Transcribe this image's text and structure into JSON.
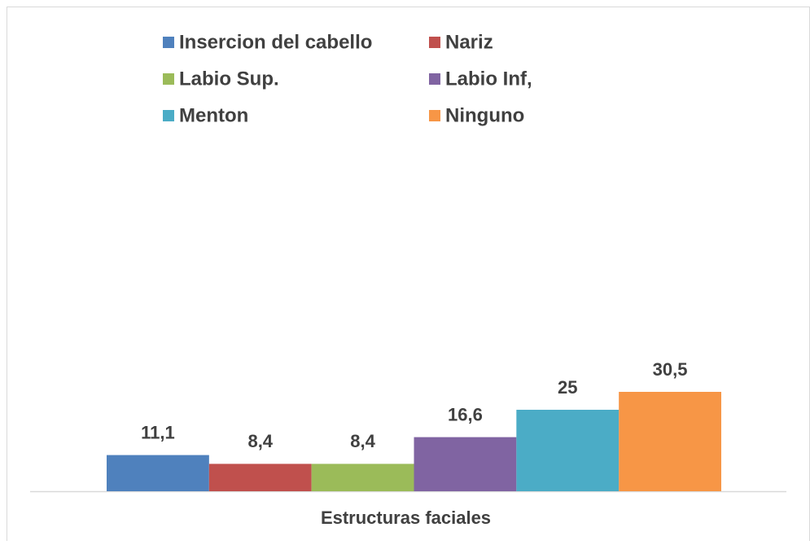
{
  "chart_data": {
    "type": "bar",
    "categories": [
      "Estructuras faciales"
    ],
    "series": [
      {
        "name": "Insercion del cabello",
        "color": "#4f81bd",
        "values": [
          11.1
        ],
        "value_labels": [
          "11,1"
        ]
      },
      {
        "name": "Nariz",
        "color": "#c0504d",
        "values": [
          8.4
        ],
        "value_labels": [
          "8,4"
        ]
      },
      {
        "name": "Labio Sup.",
        "color": "#9bbb59",
        "values": [
          8.4
        ],
        "value_labels": [
          "8,4"
        ]
      },
      {
        "name": "Labio Inf,",
        "color": "#8064a2",
        "values": [
          16.6
        ],
        "value_labels": [
          "16,6"
        ]
      },
      {
        "name": "Menton",
        "color": "#4bacc6",
        "values": [
          25
        ],
        "value_labels": [
          "25"
        ]
      },
      {
        "name": "Ninguno",
        "color": "#f79646",
        "values": [
          30.5
        ],
        "value_labels": [
          "30,5"
        ]
      }
    ],
    "ylim": [
      0,
      100
    ],
    "legend": "top"
  }
}
